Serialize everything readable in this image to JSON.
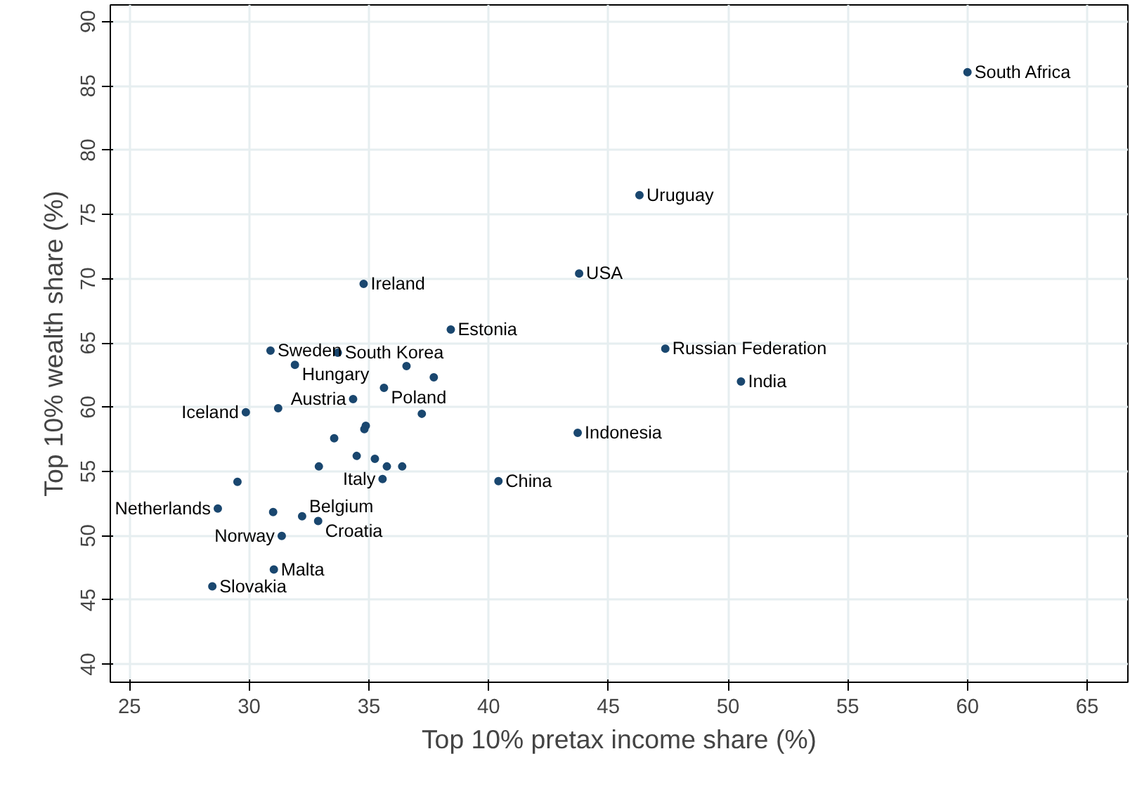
{
  "chart_data": {
    "type": "scatter",
    "xlabel": "Top 10% pretax income share (%)",
    "ylabel": "Top 10% wealth share (%)",
    "x": [
      60.0,
      46.3,
      43.78,
      34.78,
      38.42,
      47.38,
      50.54,
      30.89,
      33.7,
      31.91,
      36.57,
      37.71,
      35.63,
      34.34,
      29.86,
      31.21,
      37.21,
      34.87,
      34.81,
      33.55,
      43.72,
      34.49,
      32.91,
      35.25,
      35.75,
      36.39,
      35.57,
      40.41,
      29.51,
      28.69,
      31.0,
      32.21,
      32.88,
      31.36,
      31.03,
      28.46
    ],
    "series": [
      {
        "color": "#1a476f",
        "values": [
          86.07,
          76.5,
          70.4,
          69.6,
          66.04,
          64.56,
          62.0,
          64.4,
          64.24,
          63.3,
          63.2,
          62.33,
          61.5,
          60.63,
          59.6,
          59.92,
          59.49,
          58.56,
          58.29,
          57.58,
          58.01,
          56.21,
          55.39,
          55.99,
          55.39,
          55.39,
          54.41,
          54.25,
          54.19,
          52.12,
          51.84,
          51.52,
          51.14,
          49.99,
          47.37,
          46.06
        ]
      }
    ],
    "annotations": [
      {
        "text": "South Africa",
        "x": 60.0,
        "y": 86.07
      },
      {
        "text": "Uruguay",
        "x": 46.3,
        "y": 76.5
      },
      {
        "text": "USA",
        "x": 43.78,
        "y": 70.4
      },
      {
        "text": "Ireland",
        "x": 34.78,
        "y": 69.6
      },
      {
        "text": "Estonia",
        "x": 38.42,
        "y": 66.04
      },
      {
        "text": "Russian Federation",
        "x": 47.38,
        "y": 64.56
      },
      {
        "text": "India",
        "x": 50.54,
        "y": 62.0
      },
      {
        "text": "Sweden",
        "x": 30.89,
        "y": 64.4
      },
      {
        "text": "South Korea",
        "x": 33.7,
        "y": 64.24
      },
      {
        "text": "Hungary",
        "x": 31.91,
        "y": 63.3
      },
      {
        "text": "Poland",
        "x": 35.63,
        "y": 61.5
      },
      {
        "text": "Austria",
        "x": 34.34,
        "y": 60.63
      },
      {
        "text": "Iceland",
        "x": 29.86,
        "y": 59.6
      },
      {
        "text": "Indonesia",
        "x": 43.72,
        "y": 58.01
      },
      {
        "text": "Italy",
        "x": 35.57,
        "y": 54.41
      },
      {
        "text": "China",
        "x": 40.41,
        "y": 54.25
      },
      {
        "text": "Netherlands",
        "x": 28.69,
        "y": 52.12
      },
      {
        "text": "Belgium",
        "x": 32.21,
        "y": 51.52
      },
      {
        "text": "Croatia",
        "x": 32.88,
        "y": 51.14
      },
      {
        "text": "Norway",
        "x": 31.36,
        "y": 49.99
      },
      {
        "text": "Malta",
        "x": 31.03,
        "y": 47.37
      },
      {
        "text": "Slovakia",
        "x": 28.46,
        "y": 46.06
      }
    ],
    "xlim": [
      24.2,
      66.7
    ],
    "ylim": [
      38.6,
      91.3
    ],
    "xticks": [
      25,
      30,
      35,
      40,
      45,
      50,
      55,
      60,
      65
    ],
    "yticks": [
      40,
      45,
      50,
      55,
      60,
      65,
      70,
      75,
      80,
      85,
      90
    ],
    "grid": true,
    "marker": "circle"
  }
}
